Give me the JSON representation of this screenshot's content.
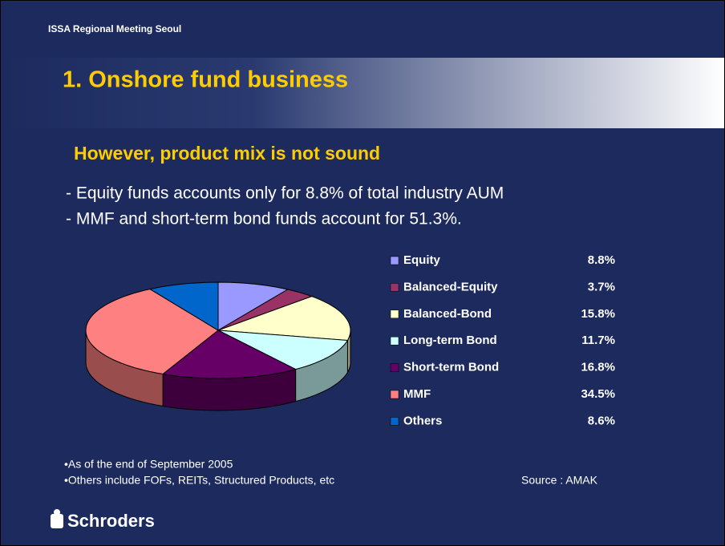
{
  "header": "ISSA Regional Meeting Seoul",
  "title": "1. Onshore fund business",
  "subtitle": "However, product mix is not sound",
  "bullets": [
    "- Equity funds accounts only for 8.8% of total industry AUM",
    "- MMF and short-term bond funds account for 51.3%."
  ],
  "notes": [
    "•As of the end of September 2005",
    "•Others include FOFs, REITs, Structured Products, etc"
  ],
  "source": "Source : AMAK",
  "logo": "Schroders",
  "chart_data": {
    "type": "pie",
    "categories": [
      "Equity",
      "Balanced-Equity",
      "Balanced-Bond",
      "Long-term Bond",
      "Short-term Bond",
      "MMF",
      "Others"
    ],
    "values": [
      8.8,
      3.7,
      15.8,
      11.7,
      16.8,
      34.5,
      8.6
    ],
    "value_labels": [
      "8.8%",
      "3.7%",
      "15.8%",
      "11.7%",
      "16.8%",
      "34.5%",
      "8.6%"
    ],
    "colors": [
      "#9999ff",
      "#993366",
      "#ffffcc",
      "#ccffff",
      "#660066",
      "#ff8080",
      "#0066cc"
    ]
  }
}
